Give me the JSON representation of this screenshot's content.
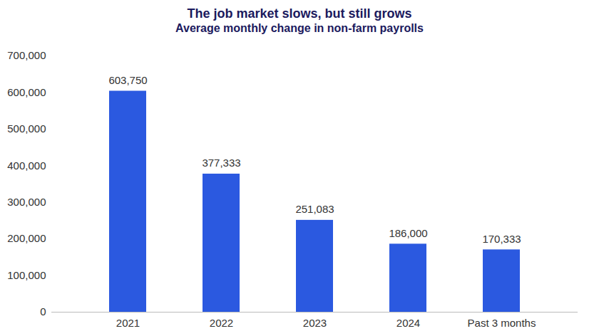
{
  "chart_data": {
    "type": "bar",
    "title": "The job market slows, but still grows",
    "subtitle": "Average monthly change in non-farm payrolls",
    "categories": [
      "2021",
      "2022",
      "2023",
      "2024",
      "Past 3 months"
    ],
    "values": [
      603750,
      377333,
      251083,
      186000,
      170333
    ],
    "value_labels": [
      "603,750",
      "377,333",
      "251,083",
      "186,000",
      "170,333"
    ],
    "color": "#2b59e0",
    "ylim": [
      0,
      700000
    ],
    "yticks": [
      0,
      {
        "value": 100000,
        "label": "100,000"
      },
      {
        "value": 200000,
        "label": "200,000"
      },
      {
        "value": 300000,
        "label": "300,000"
      },
      {
        "value": 400000,
        "label": "400,000"
      },
      {
        "value": 500000,
        "label": "500,000"
      },
      {
        "value": 600000,
        "label": "600,000"
      },
      {
        "value": 700000,
        "label": "700,000"
      }
    ],
    "grid": false,
    "data_labels": true
  }
}
